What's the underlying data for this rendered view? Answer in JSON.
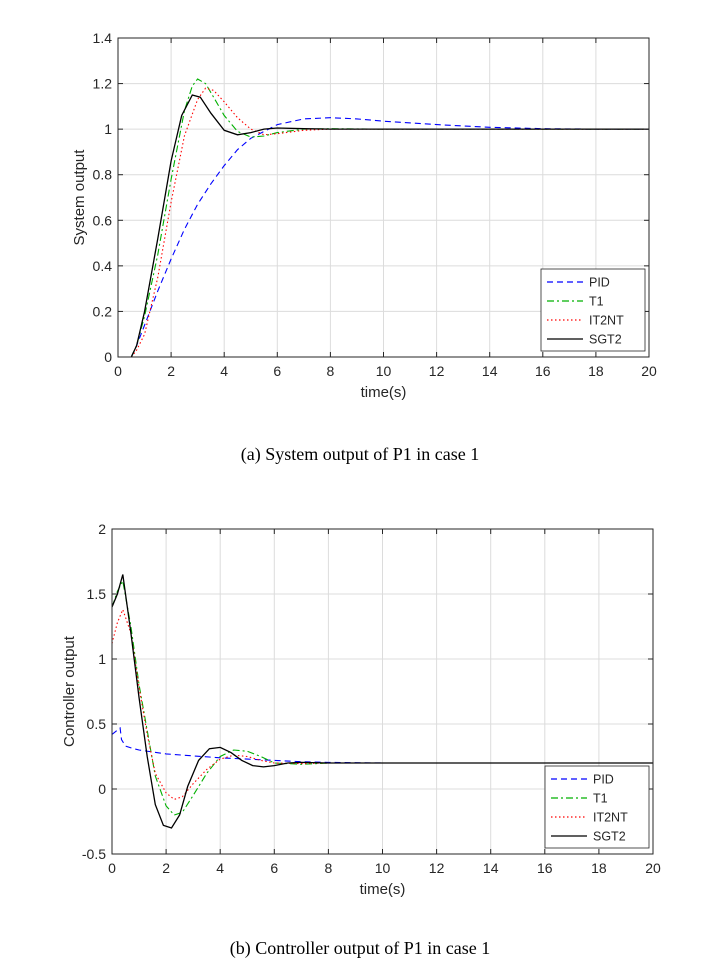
{
  "chart_data": [
    {
      "type": "line",
      "xlabel": "time(s)",
      "ylabel": "System output",
      "xlim": [
        0,
        20
      ],
      "ylim": [
        0,
        1.4
      ],
      "xticks": [
        0,
        2,
        4,
        6,
        8,
        10,
        12,
        14,
        16,
        18,
        20
      ],
      "yticks": [
        0,
        0.2,
        0.4,
        0.6,
        0.8,
        1,
        1.2,
        1.4
      ],
      "grid": true,
      "legend_position": "bottom-right",
      "series": [
        {
          "name": "PID",
          "color": "#0000ff",
          "style": "dashed",
          "x": [
            0.5,
            0.7,
            1,
            1.5,
            2,
            2.5,
            3,
            3.5,
            4,
            4.5,
            5,
            6,
            7,
            8,
            9,
            10,
            12,
            14,
            16,
            18,
            20
          ],
          "y": [
            0,
            0.05,
            0.14,
            0.29,
            0.43,
            0.56,
            0.67,
            0.76,
            0.84,
            0.91,
            0.96,
            1.02,
            1.045,
            1.05,
            1.045,
            1.035,
            1.02,
            1.008,
            1.002,
            1.0,
            1.0
          ]
        },
        {
          "name": "T1",
          "color": "#00b000",
          "style": "dashdot",
          "x": [
            0.5,
            0.7,
            1,
            1.5,
            2,
            2.5,
            2.8,
            3,
            3.3,
            3.6,
            4,
            4.5,
            5,
            5.5,
            6,
            7,
            8,
            10,
            12,
            14,
            16,
            18,
            20
          ],
          "y": [
            0,
            0.05,
            0.18,
            0.45,
            0.78,
            1.08,
            1.19,
            1.22,
            1.2,
            1.14,
            1.06,
            0.99,
            0.965,
            0.97,
            0.985,
            1.0,
            1.002,
            1.0,
            1.0,
            1.0,
            1.0,
            1.0,
            1.0
          ]
        },
        {
          "name": "IT2NT",
          "color": "#ff0000",
          "style": "dotted",
          "x": [
            0.5,
            0.7,
            1,
            1.5,
            2,
            2.5,
            3,
            3.3,
            3.6,
            4,
            4.5,
            5,
            5.5,
            6,
            7,
            8,
            10,
            12,
            14,
            16,
            18,
            20
          ],
          "y": [
            0,
            0.03,
            0.1,
            0.35,
            0.68,
            0.97,
            1.13,
            1.18,
            1.17,
            1.12,
            1.05,
            1.0,
            0.975,
            0.98,
            0.995,
            1.0,
            1.0,
            1.0,
            1.0,
            1.0,
            1.0,
            1.0
          ]
        },
        {
          "name": "SGT2",
          "color": "#000000",
          "style": "solid",
          "x": [
            0.5,
            0.7,
            1,
            1.5,
            2,
            2.4,
            2.8,
            3.1,
            3.5,
            4,
            4.5,
            5,
            5.5,
            6,
            7,
            8,
            10,
            12,
            14,
            16,
            18,
            20
          ],
          "y": [
            0,
            0.05,
            0.2,
            0.52,
            0.86,
            1.06,
            1.15,
            1.14,
            1.07,
            0.995,
            0.975,
            0.985,
            1.0,
            1.005,
            1.002,
            1.0,
            1.0,
            1.0,
            1.0,
            1.0,
            1.0,
            1.0
          ]
        }
      ]
    },
    {
      "type": "line",
      "xlabel": "time(s)",
      "ylabel": "Controller output",
      "xlim": [
        0,
        20
      ],
      "ylim": [
        -0.5,
        2
      ],
      "xticks": [
        0,
        2,
        4,
        6,
        8,
        10,
        12,
        14,
        16,
        18,
        20
      ],
      "yticks": [
        -0.5,
        0,
        0.5,
        1,
        1.5,
        2
      ],
      "grid": true,
      "legend_position": "bottom-right",
      "series": [
        {
          "name": "PID",
          "color": "#0000ff",
          "style": "dashed",
          "x": [
            0,
            0.3,
            0.35,
            0.5,
            0.8,
            1,
            1.5,
            2,
            3,
            4,
            5,
            6,
            7,
            8,
            10,
            12,
            14,
            16,
            18,
            20
          ],
          "y": [
            0.42,
            0.47,
            0.38,
            0.33,
            0.31,
            0.3,
            0.285,
            0.27,
            0.255,
            0.24,
            0.23,
            0.22,
            0.21,
            0.205,
            0.2,
            0.2,
            0.2,
            0.2,
            0.2,
            0.2
          ]
        },
        {
          "name": "T1",
          "color": "#00b000",
          "style": "dashdot",
          "x": [
            0,
            0.2,
            0.4,
            0.7,
            1,
            1.3,
            1.6,
            2,
            2.3,
            2.6,
            3,
            3.5,
            4,
            4.5,
            5,
            5.5,
            6,
            7,
            8,
            10,
            12,
            14,
            16,
            18,
            20
          ],
          "y": [
            1.4,
            1.52,
            1.6,
            1.25,
            0.8,
            0.45,
            0.1,
            -0.13,
            -0.2,
            -0.18,
            -0.05,
            0.12,
            0.25,
            0.3,
            0.29,
            0.25,
            0.2,
            0.19,
            0.2,
            0.2,
            0.2,
            0.2,
            0.2,
            0.2,
            0.2
          ]
        },
        {
          "name": "IT2NT",
          "color": "#ff0000",
          "style": "dotted",
          "x": [
            0,
            0.2,
            0.4,
            0.7,
            1,
            1.3,
            1.6,
            2,
            2.3,
            2.6,
            3,
            3.5,
            4,
            4.5,
            5,
            5.5,
            6,
            7,
            8,
            10,
            12,
            14,
            16,
            18,
            20
          ],
          "y": [
            1.12,
            1.28,
            1.38,
            1.2,
            0.78,
            0.42,
            0.12,
            -0.03,
            -0.08,
            -0.06,
            0.04,
            0.15,
            0.23,
            0.26,
            0.25,
            0.22,
            0.2,
            0.195,
            0.2,
            0.2,
            0.2,
            0.2,
            0.2,
            0.2,
            0.2
          ]
        },
        {
          "name": "SGT2",
          "color": "#000000",
          "style": "solid",
          "x": [
            0,
            0.2,
            0.4,
            0.7,
            1,
            1.3,
            1.6,
            1.9,
            2.2,
            2.5,
            2.8,
            3.2,
            3.6,
            4,
            4.4,
            4.8,
            5.2,
            5.6,
            6,
            6.5,
            7,
            8,
            10,
            12,
            14,
            16,
            18,
            20
          ],
          "y": [
            1.4,
            1.5,
            1.65,
            1.2,
            0.7,
            0.25,
            -0.12,
            -0.28,
            -0.3,
            -0.2,
            0.02,
            0.22,
            0.31,
            0.32,
            0.28,
            0.22,
            0.18,
            0.17,
            0.18,
            0.2,
            0.205,
            0.2,
            0.2,
            0.2,
            0.2,
            0.2,
            0.2,
            0.2
          ]
        }
      ]
    }
  ],
  "captions": {
    "top": "(a) System output of P1 in case 1",
    "bottom": "(b) Controller output of P1 in case 1"
  }
}
